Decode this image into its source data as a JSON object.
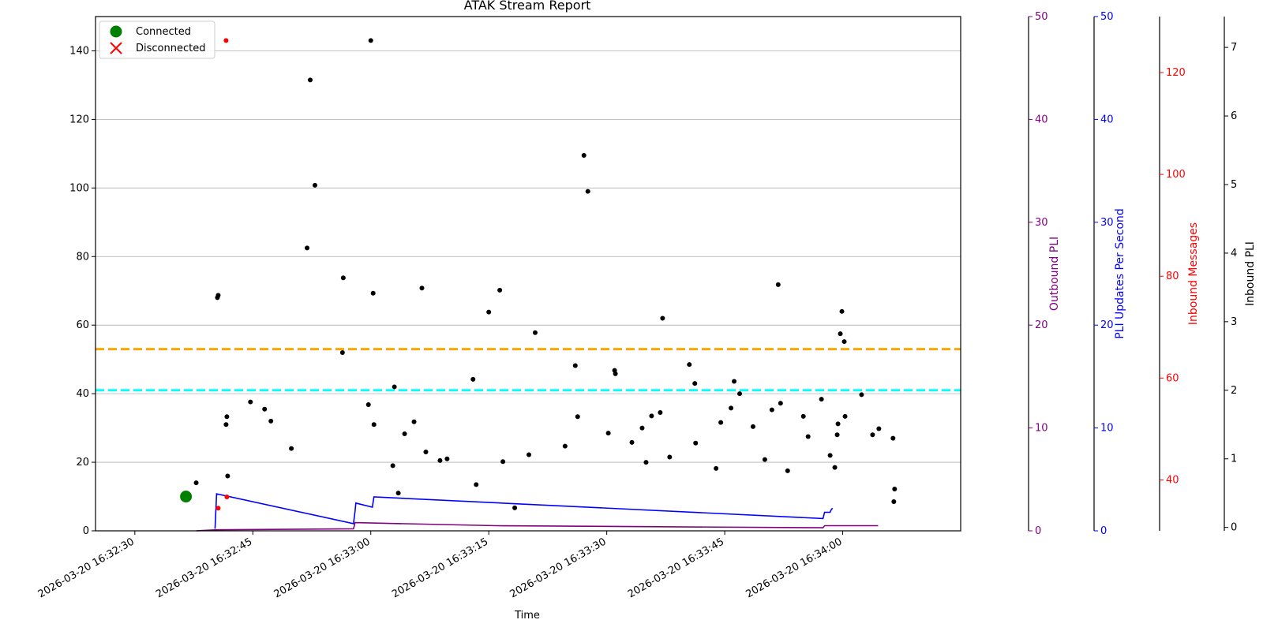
{
  "chart_data": {
    "type": "scatter",
    "title": "ATAK Stream Report",
    "xlabel": "Time",
    "x_range": [
      "2026-03-20 16:32:25",
      "2026-03-20 16:34:15"
    ],
    "x_ticks": [
      "2026-03-20 16:32:30",
      "2026-03-20 16:32:45",
      "2026-03-20 16:33:00",
      "2026-03-20 16:33:15",
      "2026-03-20 16:33:30",
      "2026-03-20 16:33:45",
      "2026-03-20 16:34:00"
    ],
    "grid": "horizontal",
    "legend_position": "top-left",
    "legend": [
      {
        "label": "Connected",
        "marker": "circle",
        "color": "#008000"
      },
      {
        "label": "Disconnected",
        "marker": "x",
        "color": "#ff0000"
      }
    ],
    "axes": {
      "left": {
        "ylim": [
          0,
          150
        ],
        "ticks": [
          0,
          20,
          40,
          60,
          80,
          100,
          120,
          140
        ],
        "label": "",
        "color": "#000000"
      },
      "outbound_pli": {
        "label": "Outbound PLI",
        "ylim": [
          0,
          50
        ],
        "ticks": [
          0,
          10,
          20,
          30,
          40,
          50
        ],
        "color": "#800080"
      },
      "pli_rate": {
        "label": "PLI Updates Per Second",
        "ylim": [
          0,
          50
        ],
        "ticks": [
          0,
          10,
          20,
          30,
          40,
          50
        ],
        "color": "#0000ff"
      },
      "inbound_messages": {
        "label": "Inbound Messages",
        "ylim": [
          30,
          131
        ],
        "ticks": [
          40,
          60,
          80,
          100,
          120
        ],
        "color": "#ff0000"
      },
      "inbound_pli": {
        "label": "Inbound PLI",
        "ylim": [
          -0.05,
          7.45
        ],
        "ticks": [
          0,
          1,
          2,
          3,
          4,
          5,
          6,
          7
        ],
        "color": "#000000"
      }
    },
    "reference_lines": [
      {
        "y": 53,
        "color": "#ffa500",
        "style": "dashed"
      },
      {
        "y": 41,
        "color": "#00ffff",
        "style": "dashed"
      }
    ],
    "connected_events": [
      {
        "t": "2026-03-20 16:32:36.5",
        "y": 10
      }
    ],
    "series": [
      {
        "axis": "left",
        "color": "#000000",
        "points": [
          {
            "t": "2026-03-20 16:32:37.8",
            "y": 14
          },
          {
            "t": "2026-03-20 16:32:40.5",
            "y": 68
          },
          {
            "t": "2026-03-20 16:32:40.6",
            "y": 68.7
          },
          {
            "t": "2026-03-20 16:32:41.6",
            "y": 31
          },
          {
            "t": "2026-03-20 16:32:41.7",
            "y": 33.3
          },
          {
            "t": "2026-03-20 16:32:41.8",
            "y": 16
          },
          {
            "t": "2026-03-20 16:32:44.7",
            "y": 37.6
          },
          {
            "t": "2026-03-20 16:32:46.5",
            "y": 35.5
          },
          {
            "t": "2026-03-20 16:32:47.3",
            "y": 32
          },
          {
            "t": "2026-03-20 16:32:49.9",
            "y": 24
          },
          {
            "t": "2026-03-20 16:32:51.9",
            "y": 82.5
          },
          {
            "t": "2026-03-20 16:32:52.3",
            "y": 131.5
          },
          {
            "t": "2026-03-20 16:32:52.9",
            "y": 100.8
          },
          {
            "t": "2026-03-20 16:32:56.4",
            "y": 52
          },
          {
            "t": "2026-03-20 16:32:56.5",
            "y": 73.8
          },
          {
            "t": "2026-03-20 16:32:59.7",
            "y": 36.8
          },
          {
            "t": "2026-03-20 16:33:00.0",
            "y": 143
          },
          {
            "t": "2026-03-20 16:33:00.3",
            "y": 69.3
          },
          {
            "t": "2026-03-20 16:33:00.4",
            "y": 31
          },
          {
            "t": "2026-03-20 16:33:02.8",
            "y": 19
          },
          {
            "t": "2026-03-20 16:33:03.0",
            "y": 42
          },
          {
            "t": "2026-03-20 16:33:03.5",
            "y": 11
          },
          {
            "t": "2026-03-20 16:33:04.3",
            "y": 28.3
          },
          {
            "t": "2026-03-20 16:33:05.5",
            "y": 31.8
          },
          {
            "t": "2026-03-20 16:33:06.5",
            "y": 70.8
          },
          {
            "t": "2026-03-20 16:33:07.0",
            "y": 23
          },
          {
            "t": "2026-03-20 16:33:08.8",
            "y": 20.5
          },
          {
            "t": "2026-03-20 16:33:09.7",
            "y": 21
          },
          {
            "t": "2026-03-20 16:33:13.0",
            "y": 44.2
          },
          {
            "t": "2026-03-20 16:33:13.4",
            "y": 13.5
          },
          {
            "t": "2026-03-20 16:33:15.0",
            "y": 63.8
          },
          {
            "t": "2026-03-20 16:33:16.4",
            "y": 70.2
          },
          {
            "t": "2026-03-20 16:33:16.8",
            "y": 20.2
          },
          {
            "t": "2026-03-20 16:33:18.3",
            "y": 6.7
          },
          {
            "t": "2026-03-20 16:33:20.1",
            "y": 22.2
          },
          {
            "t": "2026-03-20 16:33:20.9",
            "y": 57.8
          },
          {
            "t": "2026-03-20 16:33:24.7",
            "y": 24.7
          },
          {
            "t": "2026-03-20 16:33:26.0",
            "y": 48.2
          },
          {
            "t": "2026-03-20 16:33:26.3",
            "y": 33.3
          },
          {
            "t": "2026-03-20 16:33:27.1",
            "y": 109.5
          },
          {
            "t": "2026-03-20 16:33:27.6",
            "y": 99
          },
          {
            "t": "2026-03-20 16:33:30.2",
            "y": 28.5
          },
          {
            "t": "2026-03-20 16:33:31.0",
            "y": 46.8
          },
          {
            "t": "2026-03-20 16:33:31.1",
            "y": 45.8
          },
          {
            "t": "2026-03-20 16:33:33.2",
            "y": 25.8
          },
          {
            "t": "2026-03-20 16:33:34.5",
            "y": 30
          },
          {
            "t": "2026-03-20 16:33:35.0",
            "y": 20
          },
          {
            "t": "2026-03-20 16:33:35.7",
            "y": 33.5
          },
          {
            "t": "2026-03-20 16:33:36.8",
            "y": 34.5
          },
          {
            "t": "2026-03-20 16:33:37.1",
            "y": 62
          },
          {
            "t": "2026-03-20 16:33:38.0",
            "y": 21.5
          },
          {
            "t": "2026-03-20 16:33:40.5",
            "y": 48.5
          },
          {
            "t": "2026-03-20 16:33:41.2",
            "y": 43
          },
          {
            "t": "2026-03-20 16:33:41.3",
            "y": 25.6
          },
          {
            "t": "2026-03-20 16:33:43.9",
            "y": 18.2
          },
          {
            "t": "2026-03-20 16:33:44.5",
            "y": 31.6
          },
          {
            "t": "2026-03-20 16:33:45.8",
            "y": 35.8
          },
          {
            "t": "2026-03-20 16:33:46.2",
            "y": 43.6
          },
          {
            "t": "2026-03-20 16:33:46.9",
            "y": 40
          },
          {
            "t": "2026-03-20 16:33:48.6",
            "y": 30.4
          },
          {
            "t": "2026-03-20 16:33:50.1",
            "y": 20.8
          },
          {
            "t": "2026-03-20 16:33:51.0",
            "y": 35.3
          },
          {
            "t": "2026-03-20 16:33:51.8",
            "y": 71.8
          },
          {
            "t": "2026-03-20 16:33:52.1",
            "y": 37.2
          },
          {
            "t": "2026-03-20 16:33:53.0",
            "y": 17.5
          },
          {
            "t": "2026-03-20 16:33:55.0",
            "y": 33.4
          },
          {
            "t": "2026-03-20 16:33:55.6",
            "y": 27.5
          },
          {
            "t": "2026-03-20 16:33:57.3",
            "y": 38.4
          },
          {
            "t": "2026-03-20 16:33:58.4",
            "y": 22
          },
          {
            "t": "2026-03-20 16:33:59.0",
            "y": 18.5
          },
          {
            "t": "2026-03-20 16:33:59.3",
            "y": 28
          },
          {
            "t": "2026-03-20 16:33:59.4",
            "y": 31.2
          },
          {
            "t": "2026-03-20 16:33:59.7",
            "y": 57.5
          },
          {
            "t": "2026-03-20 16:33:59.9",
            "y": 64
          },
          {
            "t": "2026-03-20 16:34:00.2",
            "y": 55.2
          },
          {
            "t": "2026-03-20 16:34:00.3",
            "y": 33.4
          },
          {
            "t": "2026-03-20 16:34:02.4",
            "y": 39.7
          },
          {
            "t": "2026-03-20 16:34:03.8",
            "y": 28
          },
          {
            "t": "2026-03-20 16:34:04.6",
            "y": 29.8
          },
          {
            "t": "2026-03-20 16:34:06.4",
            "y": 27
          },
          {
            "t": "2026-03-20 16:34:06.5",
            "y": 8.5
          },
          {
            "t": "2026-03-20 16:34:06.6",
            "y": 12.2
          }
        ]
      },
      {
        "axis": "left",
        "color": "#ff0000",
        "points": [
          {
            "t": "2026-03-20 16:32:40.6",
            "y": 6.6
          },
          {
            "t": "2026-03-20 16:32:41.6",
            "y": 143
          },
          {
            "t": "2026-03-20 16:32:41.7",
            "y": 9.9
          }
        ]
      },
      {
        "axis": "pli_rate",
        "color": "#0000ff",
        "points": [
          {
            "t": "2026-03-20 16:32:40.2",
            "y": 0.2
          },
          {
            "t": "2026-03-20 16:32:40.4",
            "y": 3.6
          },
          {
            "t": "2026-03-20 16:32:57.8",
            "y": 0.7
          },
          {
            "t": "2026-03-20 16:32:58.0",
            "y": 1.9
          },
          {
            "t": "2026-03-20 16:32:58.1",
            "y": 2.7
          },
          {
            "t": "2026-03-20 16:33:00.2",
            "y": 2.3
          },
          {
            "t": "2026-03-20 16:33:00.4",
            "y": 3.3
          },
          {
            "t": "2026-03-20 16:33:57.5",
            "y": 1.2
          },
          {
            "t": "2026-03-20 16:33:57.7",
            "y": 1.8
          },
          {
            "t": "2026-03-20 16:33:58.4",
            "y": 1.8
          },
          {
            "t": "2026-03-20 16:33:58.5",
            "y": 2
          },
          {
            "t": "2026-03-20 16:33:58.6",
            "y": 2.1
          },
          {
            "t": "2026-03-20 16:33:58.7",
            "y": 2.2
          }
        ]
      },
      {
        "axis": "outbound_pli",
        "color": "#800080",
        "points": [
          {
            "t": "2026-03-20 16:32:37.8",
            "y": 0
          },
          {
            "t": "2026-03-20 16:32:40.4",
            "y": 0.1
          },
          {
            "t": "2026-03-20 16:32:57.8",
            "y": 0.2
          },
          {
            "t": "2026-03-20 16:32:58.0",
            "y": 0.8
          },
          {
            "t": "2026-03-20 16:33:16.0",
            "y": 0.5
          },
          {
            "t": "2026-03-20 16:33:57.5",
            "y": 0.3
          },
          {
            "t": "2026-03-20 16:33:57.7",
            "y": 0.5
          },
          {
            "t": "2026-03-20 16:34:04.5",
            "y": 0.5
          }
        ]
      }
    ]
  }
}
